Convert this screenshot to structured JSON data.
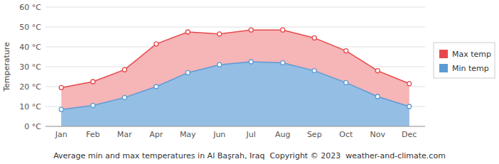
{
  "chart_data": {
    "type": "area",
    "title": "Average min and max temperatures in Al Başrah, Iraq  Copyright © 2023  weather-and-climate.com",
    "y_label": "Temperature",
    "categories": [
      "Jan",
      "Feb",
      "Mar",
      "Apr",
      "May",
      "Jun",
      "Jul",
      "Aug",
      "Sep",
      "Oct",
      "Nov",
      "Dec"
    ],
    "series": [
      {
        "name": "Max temp",
        "color": "#e8474a",
        "marker": "circle",
        "values": [
          19.5,
          22.5,
          28.5,
          41.5,
          47.5,
          46.5,
          48.5,
          48.5,
          44.5,
          38.0,
          28.0,
          21.5
        ]
      },
      {
        "name": "Min temp",
        "color": "#5b9bd5",
        "marker": "circle",
        "values": [
          8.5,
          10.5,
          14.5,
          20.0,
          27.0,
          31.0,
          32.5,
          32.0,
          28.0,
          22.0,
          15.0,
          10.0
        ]
      }
    ],
    "ylim": [
      0,
      60
    ],
    "yticks": [
      {
        "value": 0,
        "label": "0 °C"
      },
      {
        "value": 10,
        "label": "10 °C"
      },
      {
        "value": 20,
        "label": "20 °C"
      },
      {
        "value": 30,
        "label": "30 °C"
      },
      {
        "value": 40,
        "label": "40 °C"
      },
      {
        "value": 50,
        "label": "50 °C"
      },
      {
        "value": 60,
        "label": "60 °C"
      }
    ],
    "grid": true,
    "legend": "right"
  }
}
